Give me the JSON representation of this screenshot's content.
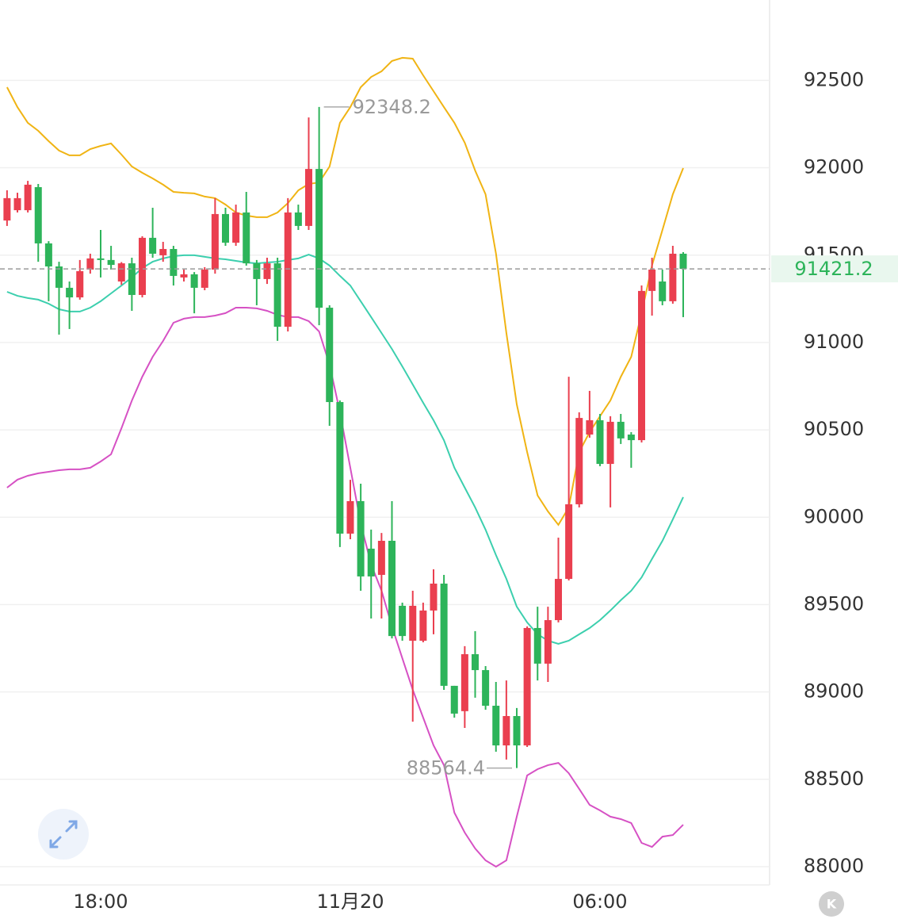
{
  "chart_data": {
    "type": "candlestick",
    "categories": [
      null,
      null,
      null,
      null,
      null,
      null,
      null,
      null,
      null,
      "18:00",
      null,
      null,
      null,
      null,
      null,
      null,
      null,
      null,
      null,
      null,
      null,
      null,
      null,
      null,
      null,
      null,
      null,
      null,
      null,
      null,
      null,
      null,
      null,
      "11月20",
      null,
      null,
      null,
      null,
      null,
      null,
      null,
      null,
      null,
      null,
      null,
      null,
      null,
      null,
      null,
      null,
      null,
      null,
      null,
      null,
      null,
      null,
      null,
      "06:00",
      null,
      null,
      null,
      null,
      null,
      null,
      null,
      null
    ],
    "open": [
      91698,
      91757,
      91757,
      91889,
      91567,
      91435,
      91313,
      91258,
      91417,
      91481,
      91472,
      91349,
      91453,
      91272,
      91599,
      91499,
      91535,
      91372,
      91390,
      91313,
      91417,
      91735,
      91571,
      91744,
      91453,
      91363,
      91453,
      91090,
      91744,
      91667,
      91993,
      91199,
      90659,
      89906,
      90092,
      89820,
      89670,
      89865,
      89493,
      89293,
      89293,
      89466,
      89620,
      89035,
      88890,
      89216,
      89125,
      88921,
      88694,
      88862,
      88694,
      89366,
      89162,
      89411,
      89647,
      90074,
      90473,
      90555,
      90305,
      90546,
      90473,
      90441,
      91295,
      91349,
      91236,
      91508
    ],
    "high": [
      91871,
      91857,
      91925,
      91907,
      91580,
      91462,
      91349,
      91472,
      91508,
      91644,
      91553,
      91460,
      91485,
      91608,
      91771,
      91576,
      91553,
      91417,
      91403,
      91431,
      91826,
      91771,
      91789,
      91862,
      91472,
      91485,
      91485,
      91826,
      91789,
      92288,
      92348.2,
      91213,
      90668,
      90214,
      90192,
      89929,
      89910,
      90092,
      89511,
      89579,
      89511,
      89702,
      89670,
      89035,
      89262,
      89348,
      89148,
      89057,
      89066,
      88908,
      89375,
      89488,
      89488,
      89883,
      90804,
      90600,
      90723,
      90591,
      90578,
      90591,
      90487,
      91326,
      91485,
      91417,
      91553,
      91517
    ],
    "low": [
      91667,
      91744,
      91744,
      91462,
      91236,
      91045,
      91077,
      91245,
      91394,
      91372,
      91417,
      91330,
      91181,
      91258,
      91485,
      91462,
      91326,
      91349,
      91167,
      91299,
      91394,
      91553,
      91553,
      91440,
      91213,
      91335,
      91009,
      91063,
      91644,
      91644,
      91099,
      90523,
      89829,
      89874,
      89579,
      89420,
      89420,
      89306,
      89293,
      88830,
      89284,
      89330,
      89012,
      88853,
      88794,
      88967,
      88898,
      88658,
      88613,
      88564.4,
      88685,
      89066,
      89057,
      89398,
      89638,
      90056,
      90455,
      90292,
      90056,
      90419,
      90283,
      90428,
      91154,
      91213,
      91222,
      91145
    ],
    "close": [
      91826,
      91826,
      91903,
      91567,
      91435,
      91313,
      91258,
      91408,
      91481,
      91472,
      91444,
      91453,
      91272,
      91599,
      91508,
      91535,
      91381,
      91390,
      91313,
      91417,
      91735,
      91571,
      91744,
      91453,
      91363,
      91453,
      91090,
      91744,
      91667,
      91993,
      91199,
      90659,
      89906,
      90092,
      89661,
      89661,
      89865,
      89320,
      89320,
      89493,
      89466,
      89620,
      89035,
      88876,
      89216,
      89125,
      88921,
      88694,
      88862,
      88694,
      89366,
      89162,
      89411,
      89647,
      90074,
      90568,
      90555,
      90305,
      90546,
      90451,
      90441,
      91295,
      91417,
      91236,
      91508,
      91421.2
    ],
    "up_color": "#ea3f4f",
    "down_color": "#2db45a",
    "lines": [
      {
        "color": "#f0b414",
        "values": [
          92461,
          92347,
          92257,
          92211,
          92152,
          92098,
          92071,
          92071,
          92107,
          92125,
          92139,
          92075,
          92007,
          91971,
          91939,
          91903,
          91862,
          91857,
          91853,
          91835,
          91826,
          91789,
          91744,
          91726,
          91717,
          91717,
          91744,
          91798,
          91871,
          91907,
          91916,
          92007,
          92257,
          92347,
          92461,
          92520,
          92552,
          92611,
          92629,
          92624,
          92529,
          92438,
          92347,
          92257,
          92143,
          91984,
          91848,
          91508,
          91054,
          90646,
          90373,
          90124,
          90033,
          89956,
          90056,
          90373,
          90487,
          90578,
          90668,
          90804,
          90918,
          91168,
          91440,
          91644,
          91848,
          91998
        ]
      },
      {
        "color": "#3ccfae",
        "values": [
          91290,
          91267,
          91254,
          91245,
          91222,
          91190,
          91177,
          91177,
          91199,
          91236,
          91281,
          91326,
          91372,
          91426,
          91462,
          91481,
          91494,
          91499,
          91499,
          91490,
          91481,
          91476,
          91467,
          91458,
          91453,
          91458,
          91462,
          91472,
          91481,
          91503,
          91481,
          91440,
          91381,
          91326,
          91236,
          91145,
          91054,
          90963,
          90863,
          90759,
          90655,
          90555,
          90441,
          90283,
          90169,
          90056,
          89929,
          89783,
          89647,
          89488,
          89398,
          89330,
          89293,
          89275,
          89293,
          89330,
          89366,
          89411,
          89466,
          89525,
          89579,
          89656,
          89761,
          89865,
          89988,
          90115
        ]
      },
      {
        "color": "#d651c4",
        "values": [
          90169,
          90215,
          90237,
          90251,
          90260,
          90269,
          90274,
          90274,
          90283,
          90319,
          90360,
          90510,
          90668,
          90804,
          90918,
          91009,
          91113,
          91136,
          91145,
          91145,
          91154,
          91168,
          91199,
          91199,
          91195,
          91181,
          91158,
          91145,
          91145,
          91122,
          91063,
          90873,
          90600,
          90283,
          89965,
          89729,
          89579,
          89375,
          89193,
          89012,
          88853,
          88694,
          88581,
          88309,
          88195,
          88104,
          88036,
          88000,
          88036,
          88286,
          88522,
          88558,
          88581,
          88594,
          88535,
          88445,
          88354,
          88322,
          88286,
          88272,
          88250,
          88136,
          88113,
          88172,
          88181,
          88240
        ]
      }
    ],
    "max_label": "92348.2",
    "min_label": "88564.4",
    "last_label": "91421.2",
    "ylim": [
      87900,
      92960
    ],
    "yticks": [
      88000,
      88500,
      89000,
      89500,
      90000,
      90500,
      91000,
      91500,
      92000,
      92500
    ],
    "grid": true,
    "logo": "K"
  }
}
